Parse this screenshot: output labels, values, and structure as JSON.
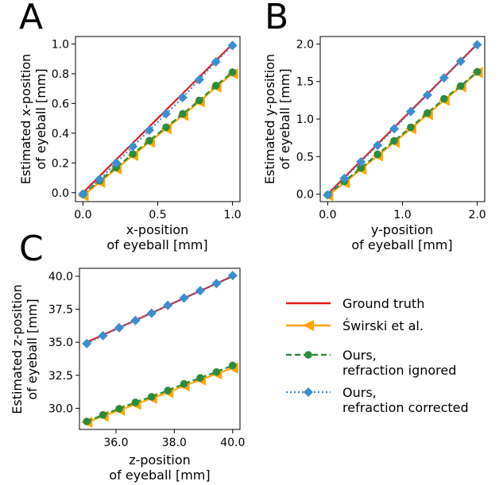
{
  "legend": [
    {
      "key": "gt",
      "label": "Ground truth",
      "color": "#e41a1c",
      "style": "solid",
      "marker": "none"
    },
    {
      "key": "swirski",
      "label": "Świrski et al.",
      "color": "#ffa500",
      "style": "solid",
      "marker": "triangle-left"
    },
    {
      "key": "ign",
      "label": "Ours,\nrefraction ignored",
      "color": "#2e8b3d",
      "style": "dashed",
      "marker": "circle"
    },
    {
      "key": "cor",
      "label": "Ours,\nrefraction corrected",
      "color": "#3b8fd0",
      "style": "dotted",
      "marker": "diamond"
    }
  ],
  "chart_data": [
    {
      "panel": "A",
      "type": "line",
      "xlabel": "x-position\nof eyeball [mm]",
      "ylabel": "Estimated x-position\nof eyeball [mm]",
      "xlim": [
        -0.05,
        1.05
      ],
      "ylim": [
        -0.06,
        1.05
      ],
      "xticks": [
        0.0,
        0.5,
        1.0
      ],
      "xtick_labels": [
        "0.0",
        "0.5",
        "1.0"
      ],
      "yticks": [
        0.0,
        0.2,
        0.4,
        0.6,
        0.8,
        1.0
      ],
      "ytick_labels": [
        "0.0",
        "0.2",
        "0.4",
        "0.6",
        "0.8",
        "1.0"
      ],
      "x": [
        0.0,
        0.111,
        0.222,
        0.333,
        0.444,
        0.556,
        0.667,
        0.778,
        0.889,
        1.0
      ],
      "series": [
        {
          "key": "gt",
          "values": [
            0.0,
            0.111,
            0.222,
            0.333,
            0.444,
            0.556,
            0.667,
            0.778,
            0.889,
            1.0
          ]
        },
        {
          "key": "swirski",
          "values": [
            -0.02,
            0.07,
            0.16,
            0.25,
            0.34,
            0.43,
            0.52,
            0.61,
            0.71,
            0.8
          ]
        },
        {
          "key": "ign",
          "values": [
            -0.01,
            0.08,
            0.17,
            0.26,
            0.35,
            0.44,
            0.53,
            0.62,
            0.72,
            0.81
          ]
        },
        {
          "key": "cor",
          "values": [
            -0.01,
            0.09,
            0.2,
            0.31,
            0.42,
            0.53,
            0.64,
            0.76,
            0.88,
            0.99
          ]
        }
      ]
    },
    {
      "panel": "B",
      "type": "line",
      "xlabel": "y-position\nof eyeball [mm]",
      "ylabel": "Estimated y-position\nof eyeball [mm]",
      "xlim": [
        -0.1,
        2.1
      ],
      "ylim": [
        -0.1,
        2.1
      ],
      "xticks": [
        0.0,
        1.0,
        2.0
      ],
      "xtick_labels": [
        "0.0",
        "1.0",
        "2.0"
      ],
      "yticks": [
        0.0,
        0.5,
        1.0,
        1.5,
        2.0
      ],
      "ytick_labels": [
        "0.0",
        "0.5",
        "1.0",
        "1.5",
        "2.0"
      ],
      "x": [
        0.0,
        0.222,
        0.444,
        0.667,
        0.889,
        1.111,
        1.333,
        1.556,
        1.778,
        2.0
      ],
      "series": [
        {
          "key": "gt",
          "values": [
            0.0,
            0.222,
            0.444,
            0.667,
            0.889,
            1.111,
            1.333,
            1.556,
            1.778,
            2.0
          ]
        },
        {
          "key": "swirski",
          "values": [
            -0.02,
            0.15,
            0.33,
            0.51,
            0.69,
            0.87,
            1.06,
            1.25,
            1.43,
            1.62
          ]
        },
        {
          "key": "ign",
          "values": [
            -0.01,
            0.17,
            0.35,
            0.53,
            0.71,
            0.89,
            1.08,
            1.27,
            1.44,
            1.63
          ]
        },
        {
          "key": "cor",
          "values": [
            -0.01,
            0.21,
            0.43,
            0.65,
            0.87,
            1.1,
            1.32,
            1.55,
            1.77,
            1.99
          ]
        }
      ]
    },
    {
      "panel": "C",
      "type": "line",
      "xlabel": "z-position\nof eyeball [mm]",
      "ylabel": "Estimated z-position\nof eyeball [mm]",
      "xlim": [
        34.75,
        40.25
      ],
      "ylim": [
        28.4,
        40.6
      ],
      "xticks": [
        36.0,
        38.0,
        40.0
      ],
      "xtick_labels": [
        "36.0",
        "38.0",
        "40.0"
      ],
      "yticks": [
        30.0,
        32.5,
        35.0,
        37.5,
        40.0
      ],
      "ytick_labels": [
        "30.0",
        "32.5",
        "35.0",
        "37.5",
        "40.0"
      ],
      "x": [
        35.0,
        35.556,
        36.111,
        36.667,
        37.222,
        37.778,
        38.333,
        38.889,
        39.444,
        40.0
      ],
      "series": [
        {
          "key": "gt",
          "values": [
            35.0,
            35.556,
            36.111,
            36.667,
            37.222,
            37.778,
            38.333,
            38.889,
            39.444,
            40.0
          ]
        },
        {
          "key": "swirski",
          "values": [
            28.95,
            29.4,
            29.85,
            30.3,
            30.75,
            31.2,
            31.7,
            32.15,
            32.6,
            33.05
          ]
        },
        {
          "key": "ign",
          "values": [
            29.0,
            29.5,
            29.97,
            30.45,
            30.87,
            31.35,
            31.85,
            32.3,
            32.75,
            33.25
          ]
        },
        {
          "key": "cor",
          "values": [
            34.9,
            35.5,
            36.1,
            36.65,
            37.2,
            37.8,
            38.35,
            38.9,
            39.45,
            40.05
          ]
        }
      ]
    }
  ]
}
